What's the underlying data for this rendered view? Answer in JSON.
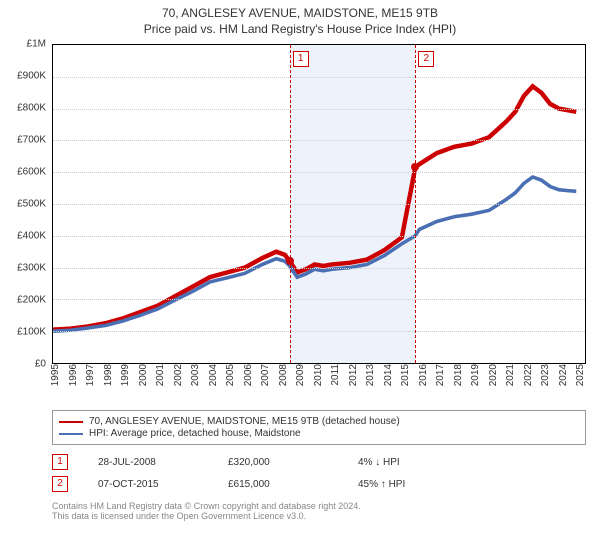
{
  "title": {
    "line1": "70, ANGLESEY AVENUE, MAIDSTONE, ME15 9TB",
    "line2": "Price paid vs. HM Land Registry's House Price Index (HPI)"
  },
  "chart": {
    "type": "line",
    "x_domain": [
      1995,
      2025.5
    ],
    "y_domain": [
      0,
      1000000
    ],
    "y_ticks": [
      0,
      100000,
      200000,
      300000,
      400000,
      500000,
      600000,
      700000,
      800000,
      900000,
      1000000
    ],
    "y_tick_labels": [
      "£0",
      "£100K",
      "£200K",
      "£300K",
      "£400K",
      "£500K",
      "£600K",
      "£700K",
      "£800K",
      "£900K",
      "£1M"
    ],
    "x_ticks": [
      1995,
      1996,
      1997,
      1998,
      1999,
      2000,
      2001,
      2002,
      2003,
      2004,
      2005,
      2006,
      2007,
      2008,
      2009,
      2010,
      2011,
      2012,
      2013,
      2014,
      2015,
      2016,
      2017,
      2018,
      2019,
      2020,
      2021,
      2022,
      2023,
      2024,
      2025
    ],
    "grid_color": "#cccccc",
    "background_color": "#ffffff",
    "band": {
      "start": 2008.57,
      "end": 2015.77,
      "color": "#eef2fa"
    },
    "markers": [
      {
        "n": "1",
        "x": 2008.57,
        "color": "#cc0000"
      },
      {
        "n": "2",
        "x": 2015.77,
        "color": "#cc0000"
      }
    ],
    "series": [
      {
        "name": "70, ANGLESEY AVENUE, MAIDSTONE, ME15 9TB (detached house)",
        "color": "#cc0000",
        "width": 1.5,
        "data": [
          [
            1995,
            105000
          ],
          [
            1996,
            108000
          ],
          [
            1997,
            115000
          ],
          [
            1998,
            125000
          ],
          [
            1999,
            140000
          ],
          [
            2000,
            160000
          ],
          [
            2001,
            180000
          ],
          [
            2002,
            210000
          ],
          [
            2003,
            240000
          ],
          [
            2004,
            270000
          ],
          [
            2005,
            285000
          ],
          [
            2006,
            300000
          ],
          [
            2007,
            330000
          ],
          [
            2007.8,
            350000
          ],
          [
            2008.3,
            340000
          ],
          [
            2008.57,
            320000
          ],
          [
            2009,
            285000
          ],
          [
            2009.5,
            295000
          ],
          [
            2010,
            310000
          ],
          [
            2010.5,
            305000
          ],
          [
            2011,
            310000
          ],
          [
            2012,
            315000
          ],
          [
            2013,
            325000
          ],
          [
            2014,
            355000
          ],
          [
            2015,
            395000
          ],
          [
            2015.77,
            615000
          ],
          [
            2016,
            625000
          ],
          [
            2017,
            660000
          ],
          [
            2018,
            680000
          ],
          [
            2019,
            690000
          ],
          [
            2020,
            710000
          ],
          [
            2021,
            760000
          ],
          [
            2021.5,
            790000
          ],
          [
            2022,
            840000
          ],
          [
            2022.5,
            870000
          ],
          [
            2023,
            850000
          ],
          [
            2023.5,
            815000
          ],
          [
            2024,
            800000
          ],
          [
            2024.5,
            795000
          ],
          [
            2025,
            790000
          ]
        ]
      },
      {
        "name": "HPI: Average price, detached house, Maidstone",
        "color": "#4a6fb3",
        "width": 1.2,
        "data": [
          [
            1995,
            100000
          ],
          [
            1996,
            103000
          ],
          [
            1997,
            110000
          ],
          [
            1998,
            118000
          ],
          [
            1999,
            132000
          ],
          [
            2000,
            150000
          ],
          [
            2001,
            170000
          ],
          [
            2002,
            198000
          ],
          [
            2003,
            225000
          ],
          [
            2004,
            255000
          ],
          [
            2005,
            268000
          ],
          [
            2006,
            282000
          ],
          [
            2007,
            310000
          ],
          [
            2007.8,
            328000
          ],
          [
            2008.3,
            320000
          ],
          [
            2008.57,
            305000
          ],
          [
            2009,
            270000
          ],
          [
            2009.5,
            280000
          ],
          [
            2010,
            295000
          ],
          [
            2010.5,
            290000
          ],
          [
            2011,
            295000
          ],
          [
            2012,
            300000
          ],
          [
            2013,
            310000
          ],
          [
            2014,
            338000
          ],
          [
            2015,
            375000
          ],
          [
            2015.77,
            400000
          ],
          [
            2016,
            420000
          ],
          [
            2017,
            445000
          ],
          [
            2018,
            460000
          ],
          [
            2019,
            468000
          ],
          [
            2020,
            480000
          ],
          [
            2021,
            515000
          ],
          [
            2021.5,
            535000
          ],
          [
            2022,
            565000
          ],
          [
            2022.5,
            585000
          ],
          [
            2023,
            575000
          ],
          [
            2023.5,
            555000
          ],
          [
            2024,
            545000
          ],
          [
            2024.5,
            542000
          ],
          [
            2025,
            540000
          ]
        ]
      }
    ],
    "sale_points": [
      {
        "x": 2008.57,
        "y": 320000,
        "color": "#cc0000"
      },
      {
        "x": 2015.77,
        "y": 615000,
        "color": "#cc0000"
      }
    ]
  },
  "legend": {
    "items": [
      {
        "color": "#cc0000",
        "label": "70, ANGLESEY AVENUE, MAIDSTONE, ME15 9TB (detached house)"
      },
      {
        "color": "#4a6fb3",
        "label": "HPI: Average price, detached house, Maidstone"
      }
    ]
  },
  "transactions": [
    {
      "n": "1",
      "color": "#cc0000",
      "date": "28-JUL-2008",
      "price": "£320,000",
      "delta": "4% ↓ HPI"
    },
    {
      "n": "2",
      "color": "#cc0000",
      "date": "07-OCT-2015",
      "price": "£615,000",
      "delta": "45% ↑ HPI"
    }
  ],
  "footer": {
    "line1": "Contains HM Land Registry data © Crown copyright and database right 2024.",
    "line2": "This data is licensed under the Open Government Licence v3.0."
  }
}
